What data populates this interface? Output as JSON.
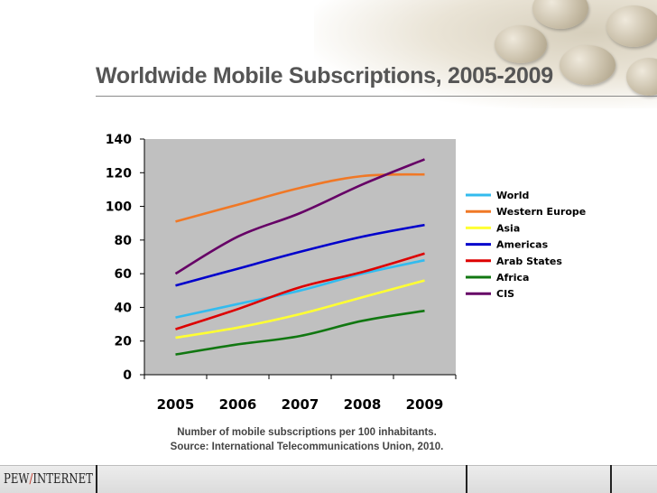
{
  "slide": {
    "title": "Worldwide Mobile Subscriptions, 2005-2009",
    "caption_line1": "Number of mobile subscriptions per 100 inhabitants.",
    "caption_line2": "Source: International Telecommunications Union, 2010.",
    "logo_left": "PEW",
    "logo_slash": "/",
    "logo_right": "INTERNET"
  },
  "chart_data": {
    "type": "line",
    "title": "Worldwide Mobile Subscriptions, 2005-2009",
    "xlabel": "",
    "ylabel": "",
    "categories": [
      "2005",
      "2006",
      "2007",
      "2008",
      "2009"
    ],
    "ylim": [
      0,
      140
    ],
    "yticks": [
      0,
      20,
      40,
      60,
      80,
      100,
      120,
      140
    ],
    "plot_background": "#c0c0c0",
    "legend_position": "right",
    "series": [
      {
        "name": "World",
        "color": "#33bbee",
        "values": [
          34,
          42,
          50,
          60,
          68
        ]
      },
      {
        "name": "Western Europe",
        "color": "#f07826",
        "values": [
          91,
          101,
          111,
          118,
          119
        ]
      },
      {
        "name": "Asia",
        "color": "#ffff33",
        "values": [
          22,
          28,
          36,
          46,
          56
        ]
      },
      {
        "name": "Americas",
        "color": "#0000cc",
        "values": [
          53,
          63,
          73,
          82,
          89
        ]
      },
      {
        "name": "Arab States",
        "color": "#dd0000",
        "values": [
          27,
          39,
          52,
          61,
          72
        ]
      },
      {
        "name": "Africa",
        "color": "#117711",
        "values": [
          12,
          18,
          23,
          32,
          38
        ]
      },
      {
        "name": "CIS",
        "color": "#660066",
        "values": [
          60,
          82,
          96,
          113,
          128
        ]
      }
    ]
  }
}
